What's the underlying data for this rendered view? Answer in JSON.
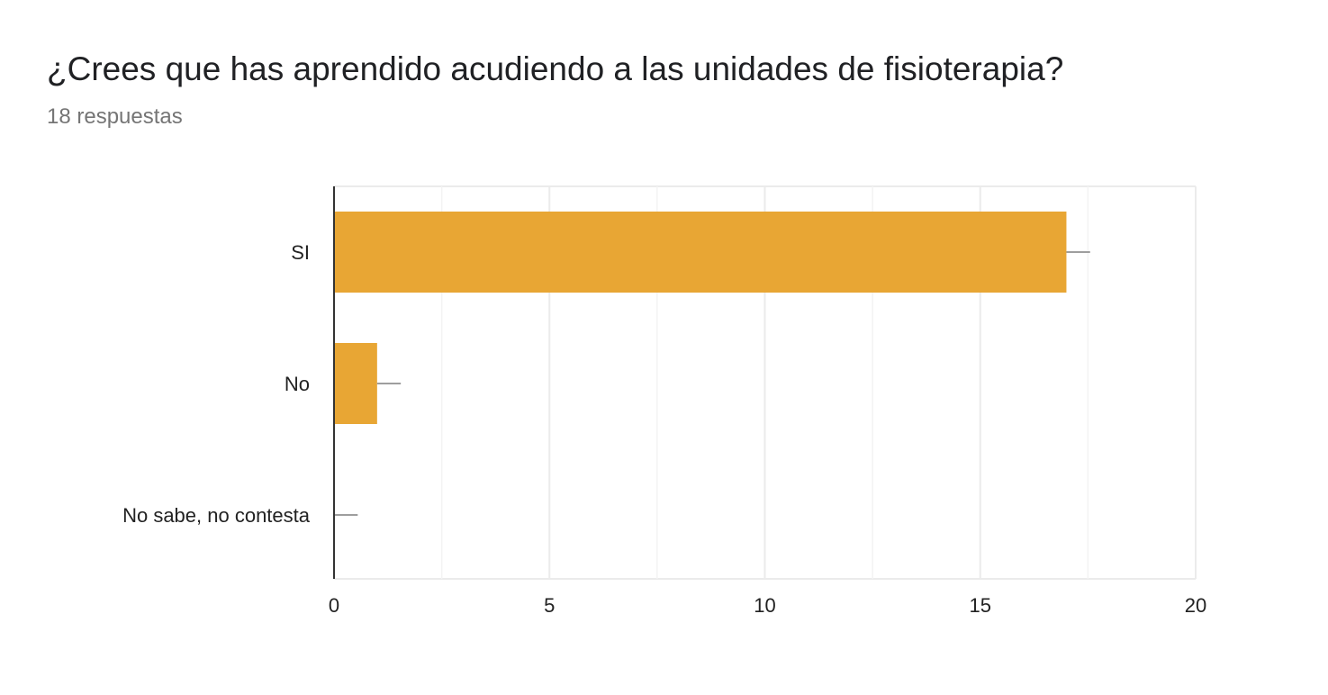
{
  "question": {
    "title": "¿Crees que has aprendido acudiendo a las unidades de fisioterapia?",
    "responses": "18 respuestas"
  },
  "colors": {
    "bar": "#E8A634",
    "grid": "#EBEBEB",
    "axis": "#333333",
    "error_bar": "#9E9E9E",
    "label": "#222222"
  },
  "chart_data": {
    "type": "bar",
    "orientation": "horizontal",
    "categories": [
      "SI",
      "No",
      "No sabe, no contesta"
    ],
    "values": [
      17,
      1,
      0
    ],
    "error_upper": [
      17.55,
      1.55,
      0.55
    ],
    "xlim": [
      0,
      20
    ],
    "xticks": [
      0,
      5,
      10,
      15,
      20
    ],
    "minor_gridlines": [
      2.5,
      7.5,
      12.5,
      17.5
    ],
    "grid": true,
    "legend": "none",
    "title": "",
    "xlabel": "",
    "ylabel": ""
  }
}
